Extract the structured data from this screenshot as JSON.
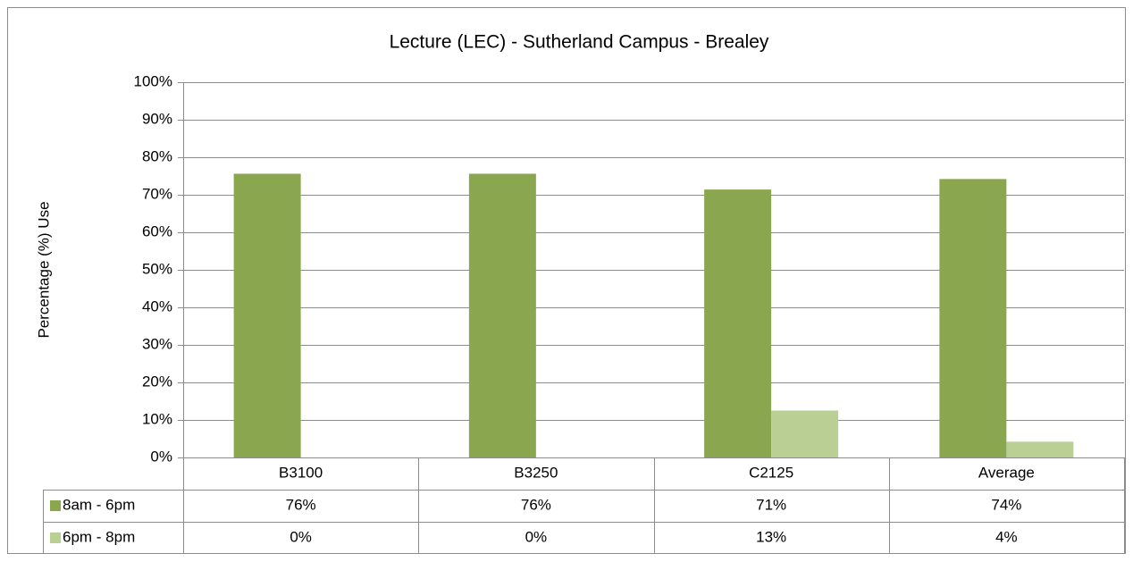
{
  "chart_data": {
    "type": "bar",
    "title": "Lecture (LEC) - Sutherland Campus - Brealey",
    "y_label": "Percentage (%) Use",
    "categories": [
      "B3100",
      "B3250",
      "C2125",
      "Average"
    ],
    "series": [
      {
        "name": "8am - 6pm",
        "color": "#8aa64e",
        "values": [
          75.6,
          75.6,
          71.4,
          74.2
        ],
        "value_labels": [
          "76%",
          "76%",
          "71%",
          "74%"
        ]
      },
      {
        "name": "6pm - 8pm",
        "color": "#b9cf94",
        "values": [
          0,
          0,
          12.5,
          4.2
        ],
        "value_labels": [
          "0%",
          "0%",
          "13%",
          "4%"
        ]
      }
    ],
    "ylim": [
      0,
      100
    ],
    "yticks": [
      {
        "value": 0,
        "label": "0%"
      },
      {
        "value": 10,
        "label": "10%"
      },
      {
        "value": 20,
        "label": "20%"
      },
      {
        "value": 30,
        "label": "30%"
      },
      {
        "value": 40,
        "label": "40%"
      },
      {
        "value": 50,
        "label": "50%"
      },
      {
        "value": 60,
        "label": "60%"
      },
      {
        "value": 70,
        "label": "70%"
      },
      {
        "value": 80,
        "label": "80%"
      },
      {
        "value": 90,
        "label": "90%"
      },
      {
        "value": 100,
        "label": "100%"
      }
    ],
    "grid": true
  }
}
